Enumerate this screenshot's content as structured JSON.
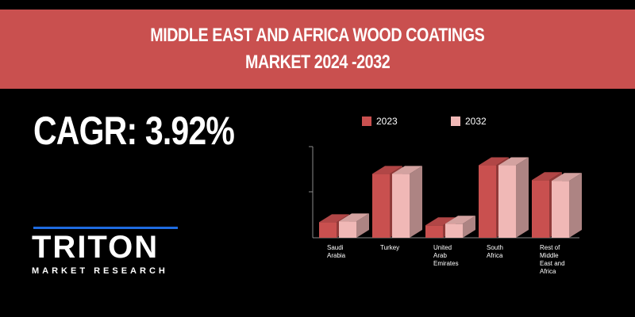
{
  "banner": {
    "line1": "MIDDLE EAST AND AFRICA WOOD COATINGS",
    "line2": "MARKET 2024 -2032"
  },
  "cagr_text": "CAGR: 3.92%",
  "logo": {
    "word": "TRITON",
    "subtitle": "MARKET RESEARCH"
  },
  "colors": {
    "banner": "#c9504f",
    "series_2023": "#c9504f",
    "series_2032": "#f0b8b6",
    "logo_accent": "#1e6be0"
  },
  "chart_data": {
    "type": "bar",
    "style": "3d-clustered-column",
    "categories": [
      "Saudi\nArabia",
      "Turkey",
      "United\nArab\nEmirates",
      "South\nAfrica",
      "Rest of\nMiddle\nEast and\nAfrica"
    ],
    "series": [
      {
        "name": "2023",
        "values": [
          20,
          82,
          16,
          93,
          74
        ]
      },
      {
        "name": "2032",
        "values": [
          21,
          82,
          18,
          93,
          73
        ]
      }
    ],
    "ylim": [
      0,
      120
    ],
    "grid": false,
    "legend": "top",
    "title": "",
    "xlabel": "",
    "ylabel": ""
  }
}
